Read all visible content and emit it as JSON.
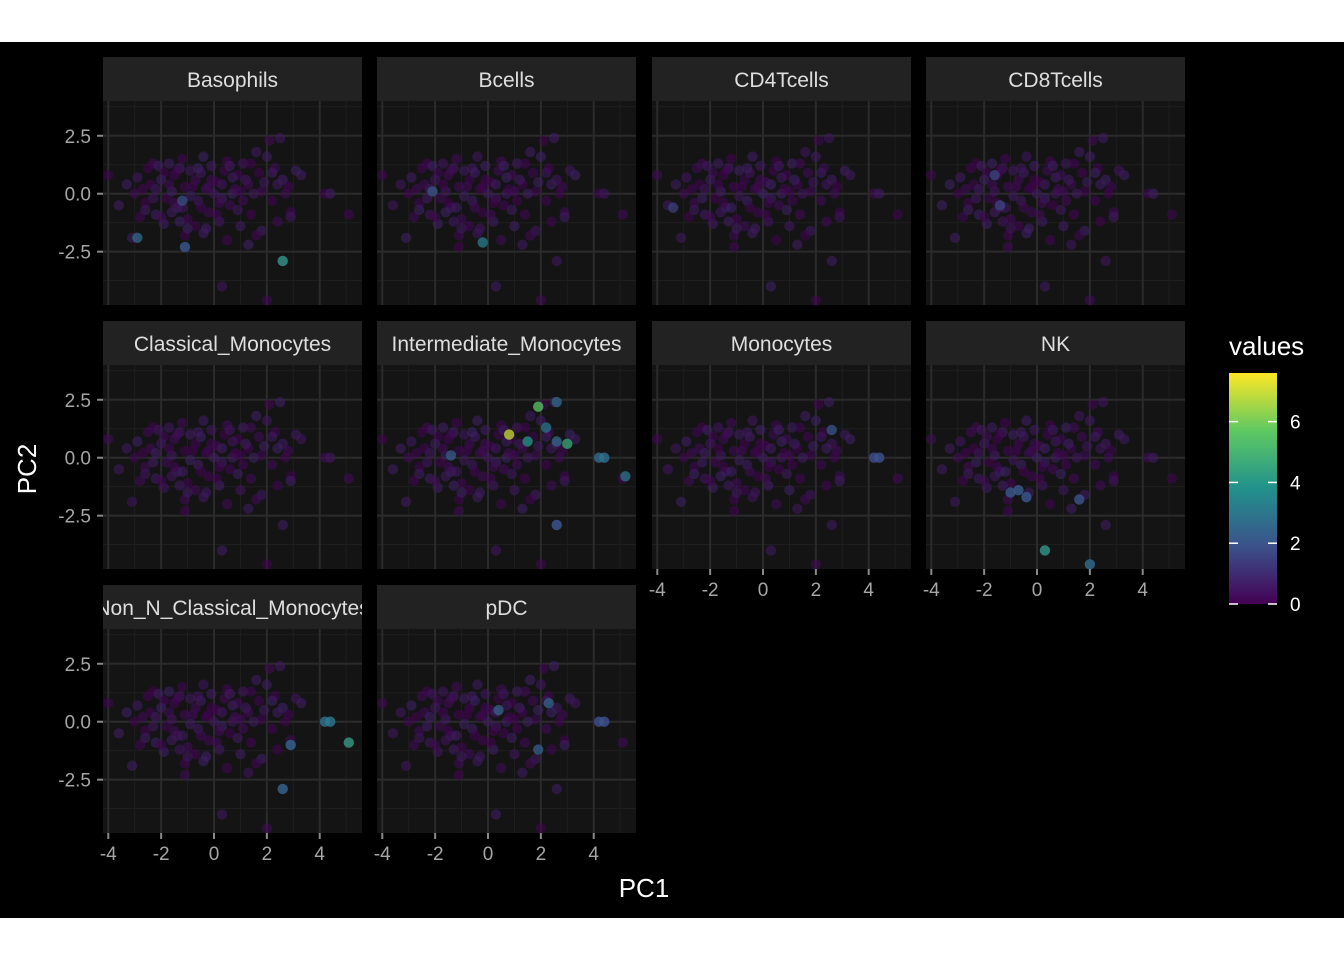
{
  "chart_data": {
    "type": "scatter",
    "facet": "wrap",
    "panels": [
      {
        "name": "Basophils",
        "highlight": [
          [
            -2.9,
            -1.9,
            2.6
          ],
          [
            -1.1,
            -2.3,
            2.3
          ],
          [
            2.6,
            -2.9,
            4.2
          ],
          [
            -1.2,
            -0.3,
            1.8
          ]
        ]
      },
      {
        "name": "Bcells",
        "highlight": [
          [
            -0.2,
            -2.1,
            3.2
          ],
          [
            -2.1,
            0.1,
            2.0
          ]
        ]
      },
      {
        "name": "CD4Tcells",
        "highlight": [
          [
            -3.4,
            -0.6,
            1.4
          ]
        ]
      },
      {
        "name": "CD8Tcells",
        "highlight": [
          [
            -1.4,
            -0.5,
            1.6
          ],
          [
            -1.6,
            0.8,
            1.6
          ]
        ]
      },
      {
        "name": "Classical_Monocytes",
        "highlight": []
      },
      {
        "name": "Intermediate_Monocytes",
        "highlight": [
          [
            0.8,
            1.0,
            7.0
          ],
          [
            1.9,
            2.2,
            5.6
          ],
          [
            3.0,
            0.6,
            4.6
          ],
          [
            1.5,
            0.7,
            4.0
          ],
          [
            4.2,
            0.0,
            3.0
          ],
          [
            4.4,
            0.0,
            3.0
          ],
          [
            5.2,
            -0.8,
            3.0
          ],
          [
            2.6,
            2.4,
            2.6
          ],
          [
            2.2,
            1.3,
            3.0
          ],
          [
            2.6,
            0.7,
            2.6
          ],
          [
            -1.4,
            0.1,
            2.2
          ],
          [
            2.6,
            -2.9,
            2.2
          ]
        ]
      },
      {
        "name": "Monocytes",
        "highlight": [
          [
            4.2,
            0.0,
            2.0
          ],
          [
            4.4,
            0.0,
            2.0
          ],
          [
            2.6,
            1.2,
            2.0
          ]
        ]
      },
      {
        "name": "NK",
        "highlight": [
          [
            0.3,
            -4.0,
            4.2
          ],
          [
            2.0,
            -4.6,
            3.0
          ],
          [
            -0.7,
            -1.4,
            2.4
          ],
          [
            -1.0,
            -1.5,
            2.2
          ],
          [
            -0.4,
            -1.7,
            2.2
          ],
          [
            1.6,
            -1.8,
            2.2
          ]
        ]
      },
      {
        "name": "Non_N_Classical_Monocytes",
        "highlight": [
          [
            5.1,
            -0.9,
            4.4
          ],
          [
            4.2,
            0.0,
            3.2
          ],
          [
            4.4,
            0.0,
            3.2
          ],
          [
            2.6,
            -2.9,
            2.6
          ],
          [
            2.9,
            -1.0,
            2.6
          ]
        ]
      },
      {
        "name": "pDC",
        "highlight": [
          [
            0.4,
            0.5,
            2.4
          ],
          [
            2.3,
            0.8,
            2.4
          ],
          [
            1.9,
            -1.2,
            2.2
          ],
          [
            4.2,
            0.0,
            2.0
          ],
          [
            4.4,
            0.0,
            2.0
          ]
        ]
      }
    ],
    "cloud": [
      [
        -4.0,
        0.8,
        0
      ],
      [
        -3.6,
        -0.5,
        1
      ],
      [
        -2.9,
        0.7,
        1
      ],
      [
        -2.3,
        1.3,
        0
      ],
      [
        -2.1,
        1.2,
        1
      ],
      [
        -1.9,
        0.9,
        0
      ],
      [
        -1.7,
        1.3,
        1
      ],
      [
        -1.5,
        0.8,
        0
      ],
      [
        -1.3,
        1.1,
        1
      ],
      [
        -1.1,
        0.3,
        0
      ],
      [
        -0.9,
        1.0,
        1
      ],
      [
        -0.7,
        0.6,
        0
      ],
      [
        -0.5,
        0.9,
        1
      ],
      [
        -0.3,
        0.2,
        0
      ],
      [
        -0.1,
        1.2,
        1
      ],
      [
        0.1,
        0.5,
        0
      ],
      [
        0.3,
        -0.2,
        1
      ],
      [
        0.5,
        1.4,
        0
      ],
      [
        0.7,
        0.0,
        1
      ],
      [
        0.9,
        0.8,
        0
      ],
      [
        1.1,
        1.3,
        1
      ],
      [
        1.3,
        0.4,
        0
      ],
      [
        1.6,
        1.8,
        1
      ],
      [
        1.8,
        0.1,
        0
      ],
      [
        2.0,
        1.6,
        1
      ],
      [
        2.2,
        -0.3,
        0
      ],
      [
        2.6,
        0.6,
        1
      ],
      [
        2.8,
        0.3,
        0
      ],
      [
        3.1,
        1.0,
        1
      ],
      [
        2.9,
        -0.8,
        0
      ],
      [
        -2.6,
        -0.4,
        0
      ],
      [
        -2.2,
        -0.9,
        1
      ],
      [
        -1.8,
        -0.2,
        0
      ],
      [
        -1.4,
        -0.6,
        1
      ],
      [
        -1.0,
        -1.1,
        0
      ],
      [
        -0.6,
        -0.3,
        1
      ],
      [
        -0.2,
        -0.8,
        0
      ],
      [
        0.2,
        -1.2,
        1
      ],
      [
        0.6,
        -0.5,
        0
      ],
      [
        1.0,
        -1.4,
        1
      ],
      [
        1.4,
        -0.9,
        0
      ],
      [
        1.8,
        -1.6,
        1
      ],
      [
        -2.4,
        0.4,
        0
      ],
      [
        -1.6,
        0.1,
        1
      ],
      [
        -0.8,
        0.3,
        0
      ],
      [
        0.0,
        0.0,
        1
      ],
      [
        0.8,
        0.2,
        0
      ],
      [
        1.5,
        0.0,
        1
      ],
      [
        2.4,
        -1.2,
        0
      ],
      [
        -3.1,
        -1.9,
        1
      ],
      [
        -2.5,
        1.1,
        0
      ],
      [
        -2.0,
        0.6,
        1
      ],
      [
        -1.2,
        1.5,
        0
      ],
      [
        -0.4,
        1.6,
        1
      ],
      [
        0.4,
        1.0,
        0
      ],
      [
        1.2,
        0.6,
        1
      ],
      [
        2.1,
        2.3,
        0
      ],
      [
        2.5,
        2.4,
        1
      ],
      [
        2.3,
        1.1,
        0
      ],
      [
        -1.9,
        -1.3,
        1
      ],
      [
        -1.1,
        -1.8,
        0
      ],
      [
        -0.3,
        -1.5,
        1
      ],
      [
        0.5,
        -2.0,
        0
      ],
      [
        1.3,
        -2.2,
        1
      ],
      [
        -2.7,
        0.2,
        0
      ],
      [
        -2.3,
        -0.2,
        1
      ],
      [
        -1.5,
        -0.4,
        0
      ],
      [
        -0.9,
        -0.1,
        1
      ],
      [
        -0.1,
        0.6,
        0
      ],
      [
        0.7,
        0.7,
        1
      ],
      [
        1.7,
        0.9,
        0
      ],
      [
        -3.3,
        0.4,
        1
      ],
      [
        -2.8,
        -1.0,
        0
      ],
      [
        -1.3,
        -1.2,
        1
      ],
      [
        -0.5,
        -0.6,
        0
      ],
      [
        0.3,
        0.4,
        1
      ],
      [
        1.1,
        -0.3,
        0
      ],
      [
        1.9,
        0.5,
        1
      ],
      [
        2.7,
        0.0,
        0
      ],
      [
        3.3,
        0.8,
        1
      ],
      [
        4.2,
        0.0,
        0
      ],
      [
        4.4,
        0.0,
        1
      ],
      [
        5.1,
        -0.9,
        0
      ],
      [
        2.6,
        -2.9,
        1
      ],
      [
        2.0,
        -4.6,
        0
      ],
      [
        0.3,
        -4.0,
        1
      ],
      [
        -1.1,
        -2.3,
        0
      ],
      [
        2.9,
        -1.0,
        1
      ],
      [
        -2.0,
        -1.0,
        0
      ],
      [
        -1.6,
        -0.8,
        1
      ],
      [
        -0.7,
        -1.4,
        0
      ],
      [
        -0.4,
        -1.7,
        1
      ],
      [
        1.6,
        -1.8,
        0
      ],
      [
        -1.0,
        -1.5,
        1
      ],
      [
        0.1,
        -0.9,
        0
      ],
      [
        0.9,
        -0.7,
        1
      ],
      [
        -1.7,
        0.4,
        0
      ],
      [
        -2.2,
        0.2,
        1
      ],
      [
        -0.2,
        0.3,
        0
      ],
      [
        0.6,
        1.2,
        1
      ],
      [
        1.4,
        1.3,
        0
      ],
      [
        2.2,
        0.9,
        1
      ],
      [
        -1.4,
        1.0,
        0
      ],
      [
        -0.6,
        1.1,
        1
      ],
      [
        1.0,
        0.1,
        0
      ],
      [
        -1.2,
        -0.6,
        1
      ],
      [
        0.2,
        -0.4,
        0
      ],
      [
        2.4,
        0.4,
        1
      ],
      [
        -3.0,
        0.0,
        0
      ],
      [
        -2.6,
        -0.7,
        1
      ]
    ],
    "xlim": [
      -4.2,
      5.6
    ],
    "ylim": [
      -4.8,
      4.0
    ],
    "xticks": [
      -4,
      -2,
      0,
      2,
      4
    ],
    "xtick_labels": [
      "-4",
      "-2",
      "0",
      "2",
      "4"
    ],
    "yticks": [
      2.5,
      0.0,
      -2.5
    ],
    "ytick_labels": [
      "2.5",
      "0.0",
      "-2.5"
    ],
    "xlabel": "PC1",
    "ylabel": "PC2",
    "legend": {
      "title": "values",
      "range": [
        0,
        7.6
      ],
      "ticks": [
        0,
        2,
        4,
        6
      ],
      "tick_labels": [
        "0",
        "2",
        "4",
        "6"
      ],
      "colormap": [
        "#440154",
        "#3b528b",
        "#21918c",
        "#5ec962",
        "#fde725"
      ],
      "placement": "right"
    },
    "grid": true,
    "theme": "dark",
    "colors": {
      "background": "#000000",
      "panel": "#141414",
      "strip": "#222222",
      "grid": "#2b2b2b"
    }
  }
}
